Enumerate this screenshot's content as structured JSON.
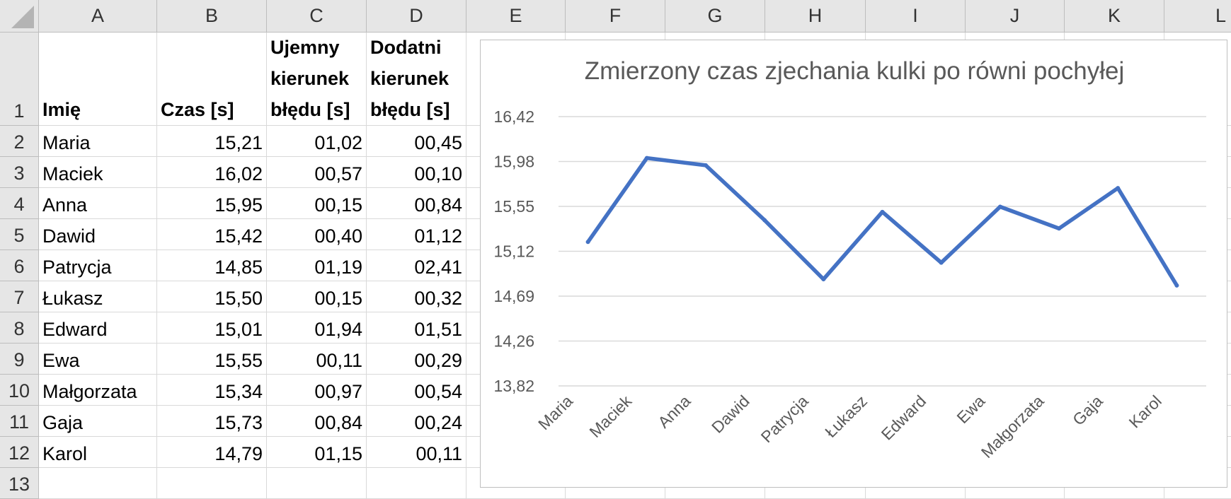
{
  "columns": [
    "A",
    "B",
    "C",
    "D",
    "E",
    "F",
    "G",
    "H",
    "I",
    "J",
    "K",
    "L"
  ],
  "rows": [
    "1",
    "2",
    "3",
    "4",
    "5",
    "6",
    "7",
    "8",
    "9",
    "10",
    "11",
    "12",
    "13"
  ],
  "sheet": {
    "headers": {
      "name": "Imię",
      "time": "Czas [s]",
      "neg_error": "Ujemny kierunek błędu [s]",
      "pos_error": "Dodatni kierunek błędu [s]"
    },
    "records": [
      {
        "name": "Maria",
        "time": "15,21",
        "neg": "01,02",
        "pos": "00,45"
      },
      {
        "name": "Maciek",
        "time": "16,02",
        "neg": "00,57",
        "pos": "00,10"
      },
      {
        "name": "Anna",
        "time": "15,95",
        "neg": "00,15",
        "pos": "00,84"
      },
      {
        "name": "Dawid",
        "time": "15,42",
        "neg": "00,40",
        "pos": "01,12"
      },
      {
        "name": "Patrycja",
        "time": "14,85",
        "neg": "01,19",
        "pos": "02,41"
      },
      {
        "name": "Łukasz",
        "time": "15,50",
        "neg": "00,15",
        "pos": "00,32"
      },
      {
        "name": "Edward",
        "time": "15,01",
        "neg": "01,94",
        "pos": "01,51"
      },
      {
        "name": "Ewa",
        "time": "15,55",
        "neg": "00,11",
        "pos": "00,29"
      },
      {
        "name": "Małgorzata",
        "time": "15,34",
        "neg": "00,97",
        "pos": "00,54"
      },
      {
        "name": "Gaja",
        "time": "15,73",
        "neg": "00,84",
        "pos": "00,24"
      },
      {
        "name": "Karol",
        "time": "14,79",
        "neg": "01,15",
        "pos": "00,11"
      }
    ]
  },
  "chart_data": {
    "type": "line",
    "title": "Zmierzony czas zjechania kulki po równi pochyłej",
    "categories": [
      "Maria",
      "Maciek",
      "Anna",
      "Dawid",
      "Patrycja",
      "Łukasz",
      "Edward",
      "Ewa",
      "Małgorzata",
      "Gaja",
      "Karol"
    ],
    "series": [
      {
        "values": [
          15.21,
          16.02,
          15.95,
          15.42,
          14.85,
          15.5,
          15.01,
          15.55,
          15.34,
          15.73,
          14.79
        ],
        "color": "#4472C4"
      }
    ],
    "y_ticks": [
      "16,42",
      "15,98",
      "15,55",
      "15,12",
      "14,69",
      "14,26",
      "13,82"
    ],
    "ylim": [
      13.82,
      16.42
    ],
    "grid": true,
    "legend": "none"
  }
}
